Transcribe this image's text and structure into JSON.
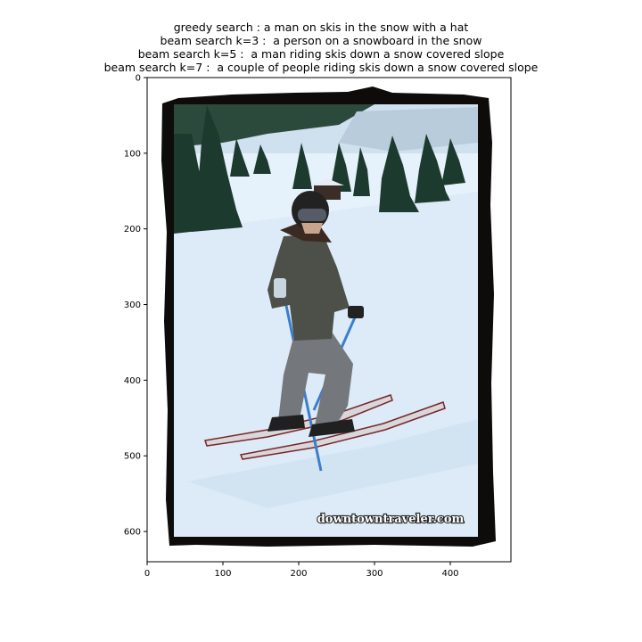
{
  "title_lines": [
    "greedy search : a man on skis in the snow with a hat",
    "beam search k=3 :  a person on a snowboard in the snow",
    "beam search k=5 :  a man riding skis down a snow covered slope",
    "beam search k=7 :  a couple of people riding skis down a snow covered slope"
  ],
  "x_axis": {
    "ticks": [
      "0",
      "100",
      "200",
      "300",
      "400"
    ],
    "range": [
      0,
      480
    ]
  },
  "y_axis": {
    "ticks": [
      "0",
      "100",
      "200",
      "300",
      "400",
      "500",
      "600"
    ],
    "range": [
      0,
      640
    ]
  },
  "image": {
    "watermark": "downtowntraveler.com",
    "colors": {
      "snow": "#e6f2fb",
      "sky": "#cfe0ee",
      "trees": "#1d3a2e",
      "frame": "#0e0b0b",
      "jacket": "#4c5048",
      "pants": "#74787c",
      "pole": "#3d7ec9"
    }
  }
}
